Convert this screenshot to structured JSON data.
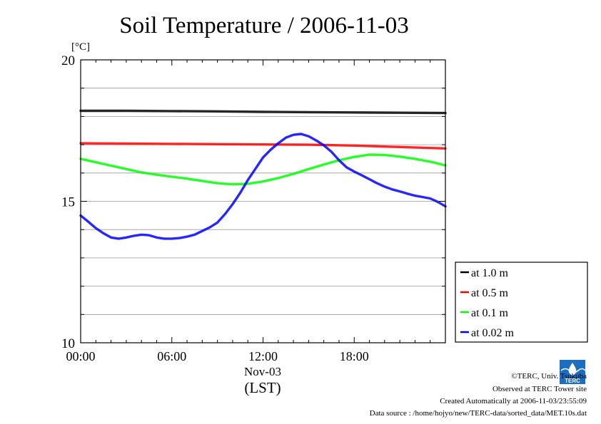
{
  "chart_data": {
    "type": "line",
    "title": "Soil Temperature / 2006-11-03",
    "y_unit": "[°C]",
    "ylim": [
      10,
      20
    ],
    "y_ticks": [
      "10",
      "15",
      "20"
    ],
    "xlim_hours": [
      0,
      24
    ],
    "x_ticks": [
      "00:00",
      "06:00",
      "12:00",
      "18:00"
    ],
    "x_date_label": "Nov-03",
    "x_axis_label": "(LST)",
    "grid": true,
    "legend_position": "right",
    "series": [
      {
        "name": "at 1.0 m",
        "color": "#000000",
        "x": [
          0,
          3,
          6,
          9,
          12,
          15,
          18,
          21,
          24
        ],
        "y": [
          18.2,
          18.2,
          18.19,
          18.18,
          18.16,
          18.15,
          18.14,
          18.13,
          18.12
        ]
      },
      {
        "name": "at 0.5 m",
        "color": "#ff0000",
        "x": [
          0,
          3,
          6,
          9,
          12,
          15,
          18,
          21,
          24
        ],
        "y": [
          17.05,
          17.04,
          17.03,
          17.02,
          17.01,
          17.0,
          16.97,
          16.92,
          16.87
        ]
      },
      {
        "name": "at 0.1 m",
        "color": "#00ff00",
        "x": [
          0,
          1,
          2,
          3,
          4,
          5,
          6,
          7,
          8,
          9,
          10,
          11,
          12,
          13,
          14,
          15,
          16,
          17,
          18,
          19,
          20,
          21,
          22,
          23,
          24
        ],
        "y": [
          16.5,
          16.38,
          16.26,
          16.14,
          16.02,
          15.94,
          15.87,
          15.8,
          15.72,
          15.64,
          15.6,
          15.62,
          15.7,
          15.82,
          15.97,
          16.14,
          16.3,
          16.45,
          16.57,
          16.65,
          16.64,
          16.58,
          16.5,
          16.4,
          16.27
        ]
      },
      {
        "name": "at 0.02 m",
        "color": "#0000ff",
        "x": [
          0,
          0.5,
          1,
          1.5,
          2,
          2.5,
          3,
          3.5,
          4,
          4.5,
          5,
          5.5,
          6,
          6.5,
          7,
          7.5,
          8,
          8.5,
          9,
          9.5,
          10,
          10.5,
          11,
          11.5,
          12,
          12.5,
          13,
          13.5,
          14,
          14.5,
          15,
          15.5,
          16,
          16.5,
          17,
          17.5,
          18,
          18.5,
          19,
          19.5,
          20,
          20.5,
          21,
          21.5,
          22,
          22.5,
          23,
          23.5,
          24
        ],
        "y": [
          14.5,
          14.28,
          14.05,
          13.87,
          13.72,
          13.68,
          13.72,
          13.78,
          13.82,
          13.8,
          13.72,
          13.68,
          13.68,
          13.7,
          13.75,
          13.82,
          13.95,
          14.08,
          14.25,
          14.55,
          14.9,
          15.3,
          15.75,
          16.15,
          16.55,
          16.82,
          17.05,
          17.25,
          17.35,
          17.38,
          17.3,
          17.15,
          16.98,
          16.75,
          16.45,
          16.2,
          16.05,
          15.92,
          15.78,
          15.64,
          15.52,
          15.42,
          15.35,
          15.27,
          15.2,
          15.15,
          15.1,
          14.98,
          14.82
        ]
      }
    ]
  },
  "footer": {
    "copyright": "©TERC, Univ. Tsukuba",
    "observed": "Observed at TERC Tower site",
    "created": "Created Automatically at 2006-11-03/23:55:09",
    "source": "Data source : /home/hojyo/new/TERC-data/sorted_data/MET.10s.dat",
    "logo_text": "TERC"
  }
}
